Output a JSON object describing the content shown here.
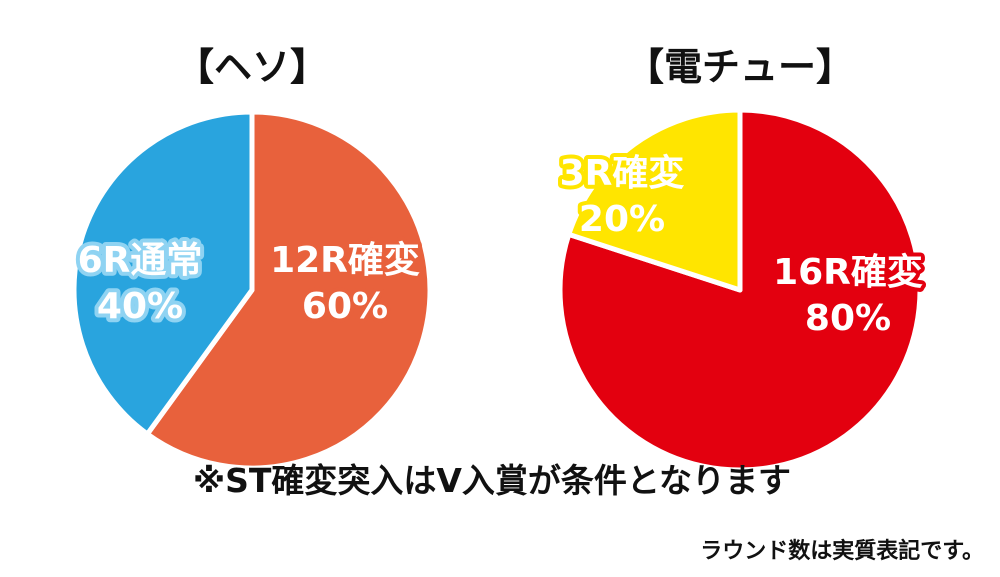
{
  "chart_data": [
    {
      "type": "pie",
      "title": "【ヘソ】",
      "slices": [
        {
          "label": "12R確変",
          "value": 60,
          "value_text": "60%",
          "color": "#e8613c",
          "label_fill": "#ffffff",
          "label_stroke": "#e8613c"
        },
        {
          "label": "6R通常",
          "value": 40,
          "value_text": "40%",
          "color": "#29a4de",
          "label_fill": "#111111",
          "label_stroke": "#8fd3f2"
        }
      ]
    },
    {
      "type": "pie",
      "title": "【電チュー】",
      "slices": [
        {
          "label": "16R確変",
          "value": 80,
          "value_text": "80%",
          "color": "#e3000f",
          "label_fill": "#ffffff",
          "label_stroke": "#e3000f"
        },
        {
          "label": "3R確変",
          "value": 20,
          "value_text": "20%",
          "color": "#ffe500",
          "label_fill": "#111111",
          "label_stroke": "#ffe500"
        }
      ]
    }
  ],
  "footnote": "※ST確変突入はV入賞が条件となります",
  "note": "ラウンド数は実質表記です。"
}
